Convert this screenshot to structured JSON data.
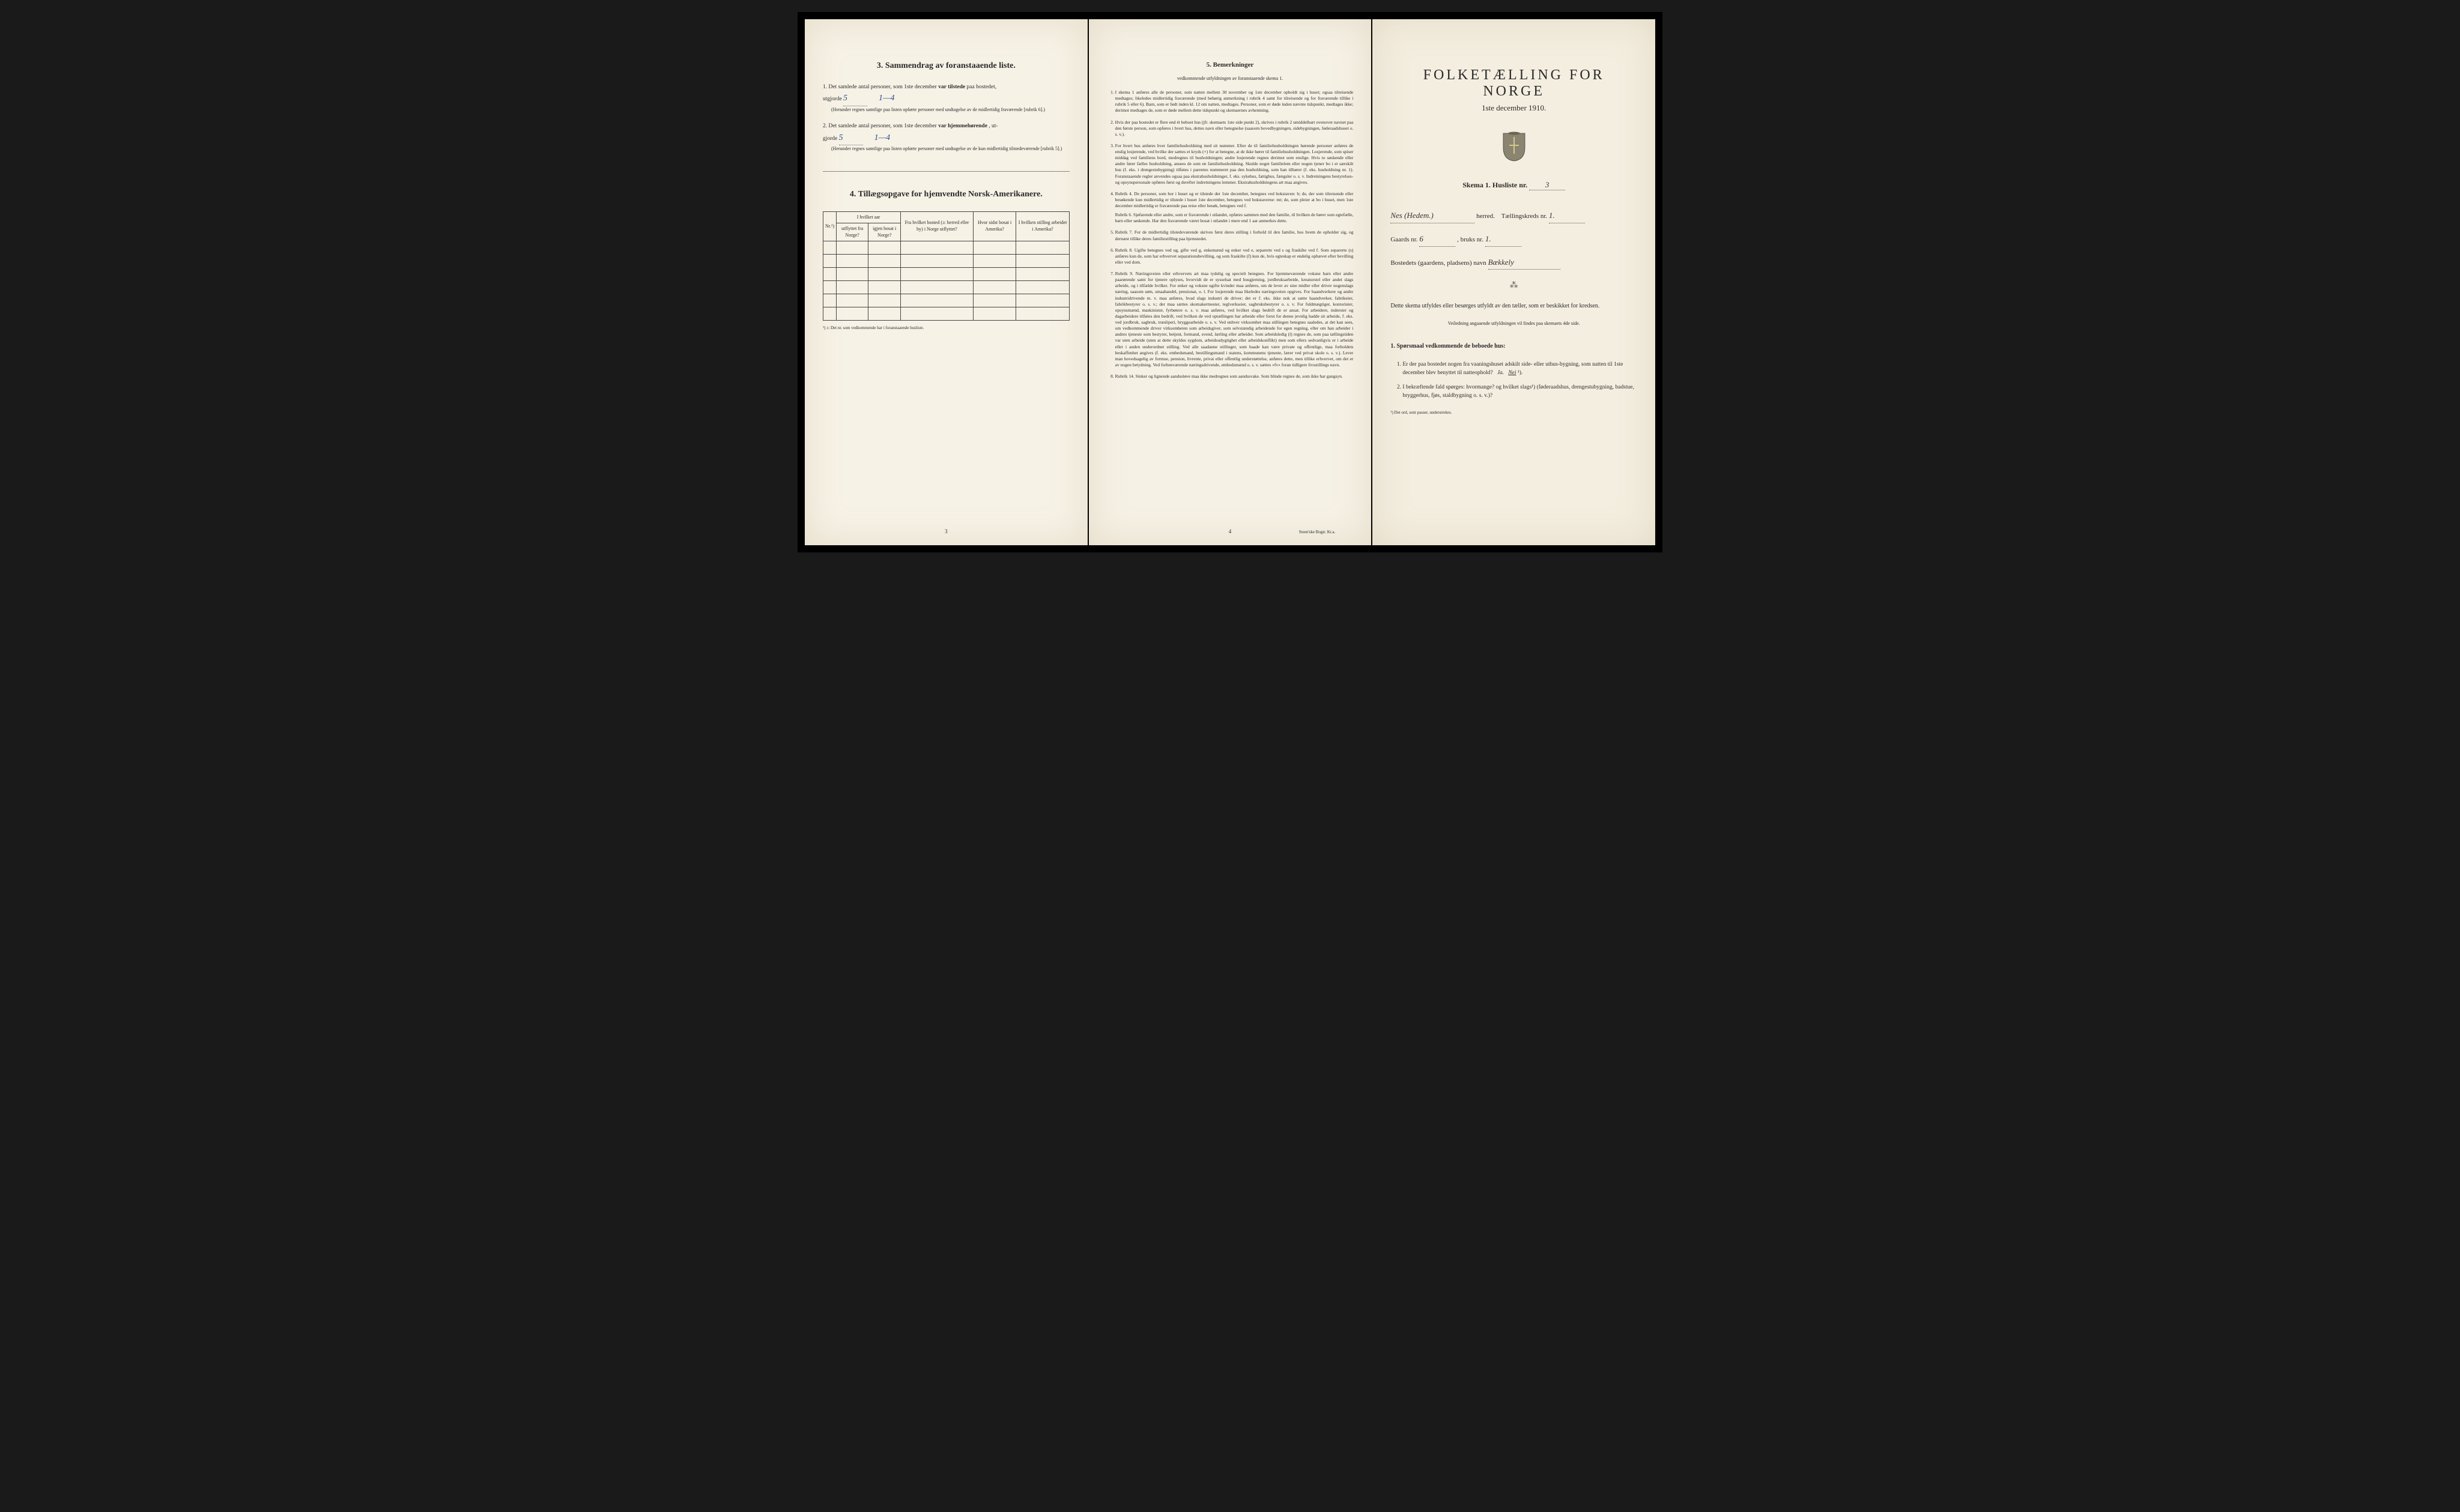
{
  "colors": {
    "paper": "#f5f0e4",
    "ink": "#2a2a2a",
    "handwriting_blue": "#2a4a8a",
    "handwriting_dark": "#333333",
    "border": "#444444"
  },
  "page1": {
    "section3_title": "3.  Sammendrag av foranstaaende liste.",
    "item1_prefix": "1.  Det samlede antal personer, som 1ste december",
    "item1_bold": "var tilstede",
    "item1_suffix": "paa bostedet,",
    "item1_line2": "utgjorde",
    "item1_value": "5",
    "item1_range": "1—4",
    "item1_note": "(Herunder regnes samtlige paa listen opførte personer med undtagelse av de midlertidig fraværende [rubrik 6].)",
    "item2_prefix": "2.  Det samlede antal personer, som 1ste december",
    "item2_bold": "var hjemmehørende",
    "item2_suffix": ", ut-",
    "item2_line2": "gjorde",
    "item2_value": "5",
    "item2_range": "1—4",
    "item2_note": "(Herunder regnes samtlige paa listen opførte personer med undtagelse av de kun midlertidig tilstedeværende [rubrik 5].)",
    "section4_title": "4.  Tillægsopgave for hjemvendte Norsk-Amerikanere.",
    "table": {
      "col_nr": "Nr.¹)",
      "col_year_header": "I hvilket aar",
      "col_year_out": "utflyttet fra Norge?",
      "col_year_back": "igjen bosat i Norge?",
      "col_from": "Fra hvilket bosted (ɔ: herred eller by) i Norge utflyttet?",
      "col_where": "Hvor sidst bosat i Amerika?",
      "col_job": "I hvilken stilling arbeidet i Amerika?",
      "rows": 6
    },
    "table_footnote": "¹) ɔ: Det nr. som vedkommende har i foranstaaende husliste.",
    "pagenum": "3"
  },
  "page2": {
    "title": "5.  Bemerkninger",
    "subtitle": "vedkommende utfyldningen av foranstaaende skema 1.",
    "items": [
      "I skema 1 anføres alle de personer, som natten mellem 30 november og 1ste december opholdt sig i huset; ogsaa tilreisende medtages; likeledes midlertidig fraværende (med behørig anmerkning i rubrik 4 samt for tilreisende og for fraværende tillike i rubrik 5 eller 6). Barn, som er født inden kl. 12 om natten, medtages. Personer, som er døde inden nævnte tidspunkt, medtages ikke; derimot medtages de, som er døde mellem dette tidspunkt og skemaernes avhentning.",
      "Hvis der paa bostedet er flere end ét beboet hus (jfr. skemaets 1ste side punkt 2), skrives i rubrik 2 umiddelbart ovenover navnet paa den første person, som opføres i hvert hus, dettes navn eller betegnelse (saasom hovedbygningen, sidebygningen, føderaadshuset o. s. v.).",
      "For hvert hus anføres hver familiehusholdning med sit nummer. Efter de til familiehusholdningen hørende personer anføres de enslig losjerende, ved hvilke der sættes et kryds (×) for at betegne, at de ikke hører til familiehusholdningen. Losjerende, som spiser middag ved familiens bord, medregnes til husholdningen; andre losjerende regnes derimot som enslige. Hvis to søskende eller andre fører fælles husholdning, ansees de som en familiehusholdning. Skulde noget familielem eller nogen tjener bo i et særskilt hus (f. eks. i drengestubygning) tilføies i parentes nummeret paa den husholdning, som han tilhører (f. eks. husholdning nr. 1). Foranstaaende regler anvendes ogsaa paa ekstrahusholdninger, f. eks. sykehus, fattighus, fængsler o. s. v. Indretningens bestyrelses- og opsynspersonale opføres først og derefter indretningens lemmer. Ekstrahusholdningens art maa angives.",
      "Rubrik 4. De personer, som bor i huset og er tilstede der 1ste december, betegnes ved bokstaven: b; de, der som tilreisende eller besøkende kun midlertidig er tilstede i huset 1ste december, betegnes ved bokstaverne: mt; de, som pleier at bo i huset, men 1ste december midlertidig er fraværende paa reise eller besøk, betegnes ved f.",
      "Rubrik 7. For de midlertidig tilstedeværende skrives først deres stilling i forhold til den familie, hos hvem de opholder sig, og dernæst tillike deres familiestilling paa hjemstedet.",
      "Rubrik 8. Ugifte betegnes ved ug, gifte ved g, enkemænd og enker ved e, separerte ved s og fraskilte ved f. Som separerte (s) anføres kun de, som har erhvervet separationsbevilling, og som fraskilte (f) kun de, hvis egteskap er endelig ophævet efter bevilling eller ved dom.",
      "Rubrik 9. Næringsveien eller erhvervets art maa tydelig og specielt betegnes. For hjemmeværende voksne barn eller andre paarørende samt for tjenere oplyses, hvorvidt de er sysselsat med husgjerning, jordbruksarbeide, kreaturstel eller andet slags arbeide, og i tilfælde hvilket. For enker og voksne ugifte kvinder maa anføres, om de lever av sine midler eller driver nogenslags næring, saasom søm, smaahandel, pensionat, o. l. For losjerende maa likeledes næringsveien opgives. For haandverkere og andre industridrivende m. v. maa anføres, hvad slags industri de driver; det er f. eks. ikke nok at sætte haandverker, fabrikeier, fabrikbestyrer o. s. v.; der maa sættes skomakermester, teglverkseier, sagbruksbestyrer o. s. v. For fuldmægtiger, kontorister, opsynsmænd, maskinister, fyrbøtere o. s. v. maa anføres, ved hvilket slags bedrift de er ansat. For arbeidere, inderster og dagarbeidere tilføies den bedrift, ved hvilken de ved optællingen har arbeide eller forut for denne jevnlig hadde sit arbeide, f. eks. ved jordbruk, sagbruk, træsliperi, bryggearbeide o. s. v. Ved enhver virksomhet maa stillingen betegnes saaledes, at det kan sees, om vedkommende driver virksomheten som arbeidsgiver, som selvstændig arbeidende for egen regning, eller om han arbeider i andres tjeneste som bestyrer, betjent, formand, svend, lærling eller arbeider. Som arbeidsledig (l) regnes de, som paa tællingstiden var uten arbeide (uten at dette skyldes sygdom, arbeidsudygtighet eller arbeidskonflikt) men som ellers sedvanligvis er i arbeide eller i anden underordnet stilling. Ved alle saadanne stillinger, som baade kan være private og offentlige, maa forholdets beskaffenhet angives (f. eks. embedsmand, bestillingsmand i statens, kommunens tjeneste, lærer ved privat skole o. s. v.). Lever man hovedsagelig av formue, pension, livrente, privat eller offentlig understøttelse, anføres dette, men tillike erhvervet, om det er av nogen betydning. Ved forhenværende næringsdrivende, embedsmænd o. s. v. sættes «fv» foran tidligere livsstillings navn.",
      "Rubrik 14. Sinker og lignende aandssløve maa ikke medregnes som aandssvake. Som blinde regnes de, som ikke har gangsyn."
    ],
    "rubrik6": "Rubrik 6. Sjøfarende eller andre, som er fraværende i utlandet, opføres sammen med den familie, til hvilken de hører som egtefælle, barn eller søskende. Har den fraværende været bosat i utlandet i mere end 1 aar anmerkes dette.",
    "pagenum": "4",
    "printer": "Steen'ske Bogtr.  Kr.a."
  },
  "page3": {
    "title": "FOLKETÆLLING FOR NORGE",
    "date": "1ste december 1910.",
    "skema_label": "Skema 1.   Husliste nr.",
    "husliste_nr": "3",
    "herred_label": "herred.",
    "herred_value": "Nes (Hedem.)",
    "kretsnr_label": "Tællingskreds nr.",
    "kretsnr_value": "1.",
    "gaards_label": "Gaards nr.",
    "gaards_value": "6",
    "bruks_label": ", bruks nr.",
    "bruks_value": "1.",
    "bosted_label": "Bostedets (gaardens, pladsens) navn",
    "bosted_value": "Bækkely",
    "instructions": "Dette skema utfyldes eller besørges utfyldt av den tæller, som er beskikket for kredsen.",
    "instructions_sub": "Veiledning angaaende utfyldningen vil findes paa skemaets 4de side.",
    "q_heading": "1. Spørsmaal vedkommende de beboede hus:",
    "q1": "Er der paa bostedet nogen fra vaaningshuset adskilt side- eller uthus-bygning, som natten til 1ste december blev benyttet til natteophold?   Ja.   Nei ¹).",
    "q1_answer": "Nei",
    "q2": "I bekræftende fald spørges: hvormange?   og hvilket slags¹) (føderaadshus, drengestubygning, badstue, bryggerhus, fjøs, staldbygning o. s. v.)?",
    "footnote": "¹) Det ord, som passer, understrekes."
  }
}
